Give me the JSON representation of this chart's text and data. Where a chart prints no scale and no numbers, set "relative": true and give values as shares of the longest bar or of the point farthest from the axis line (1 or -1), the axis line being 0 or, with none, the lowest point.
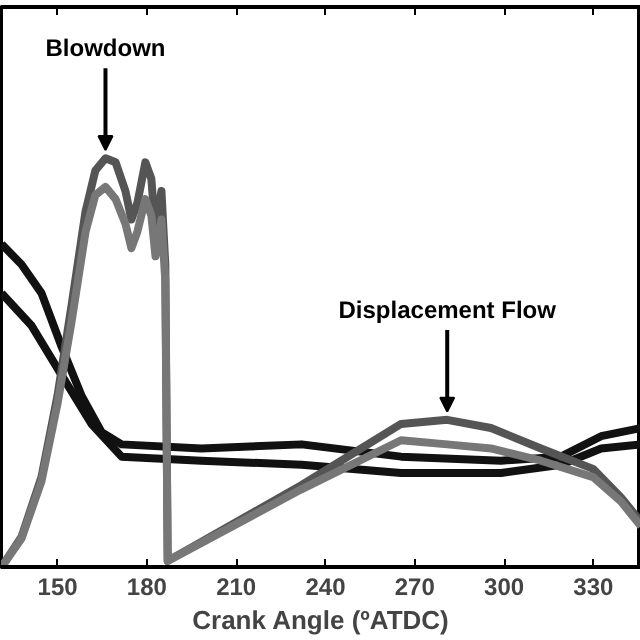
{
  "chart_data": {
    "type": "line",
    "relative": true,
    "xlabel": "Crank Angle (ºATDC)",
    "xlim": [
      131,
      346
    ],
    "xticks": [
      150,
      180,
      210,
      240,
      270,
      300,
      330
    ],
    "grid": false,
    "marker": "none",
    "line_style": "solid",
    "series": [
      {
        "color": "#111111",
        "x": [
          131.2,
          137.9,
          144.6,
          151.3,
          158.0,
          164.8,
          171.5,
          198.3,
          232.0,
          265.4,
          299.0,
          319.1,
          332.6,
          346.0
        ],
        "values": [
          0.79,
          0.74,
          0.67,
          0.54,
          0.42,
          0.33,
          0.3,
          0.29,
          0.3,
          0.27,
          0.26,
          0.27,
          0.32,
          0.34
        ]
      },
      {
        "color": "#111111",
        "x": [
          131.2,
          141.3,
          151.3,
          161.4,
          171.5,
          198.3,
          232.0,
          265.4,
          299.0,
          319.1,
          332.6,
          346.0
        ],
        "values": [
          0.67,
          0.59,
          0.47,
          0.35,
          0.27,
          0.26,
          0.25,
          0.23,
          0.23,
          0.25,
          0.29,
          0.3
        ]
      },
      {
        "color": "#555555",
        "x": [
          131.2,
          137.9,
          144.6,
          150.0,
          154.7,
          159.4,
          162.7,
          166.1,
          169.5,
          172.8,
          174.8,
          176.8,
          179.5,
          181.5,
          182.9,
          184.9,
          186.2,
          187.0,
          231.9,
          265.4,
          280.9,
          295.6,
          312.4,
          329.9,
          339.3,
          346.0
        ],
        "values": [
          0,
          0.074,
          0.22,
          0.42,
          0.64,
          0.87,
          0.97,
          1.0,
          0.99,
          0.92,
          0.85,
          0.89,
          0.99,
          0.95,
          0.82,
          0.92,
          0.74,
          0.015,
          0.2,
          0.35,
          0.36,
          0.34,
          0.29,
          0.24,
          0.17,
          0.11
        ]
      },
      {
        "color": "#777777",
        "x": [
          131.2,
          137.9,
          144.6,
          150.0,
          154.7,
          159.4,
          162.7,
          166.1,
          169.5,
          172.8,
          174.8,
          176.8,
          179.5,
          181.5,
          182.9,
          184.9,
          186.2,
          187.0,
          231.9,
          265.4,
          280.9,
          295.6,
          312.4,
          329.9,
          339.3,
          346.0
        ],
        "values": [
          0,
          0.07,
          0.21,
          0.4,
          0.6,
          0.82,
          0.91,
          0.93,
          0.9,
          0.84,
          0.78,
          0.82,
          0.9,
          0.86,
          0.76,
          0.85,
          0.7,
          0.015,
          0.19,
          0.31,
          0.3,
          0.29,
          0.26,
          0.22,
          0.16,
          0.1
        ]
      }
    ],
    "annotations": [
      {
        "text": "Blowdown",
        "x": 166.1,
        "y": 1.0
      },
      {
        "text": "Displacement Flow",
        "x": 280.9,
        "y": 0.36
      }
    ]
  }
}
